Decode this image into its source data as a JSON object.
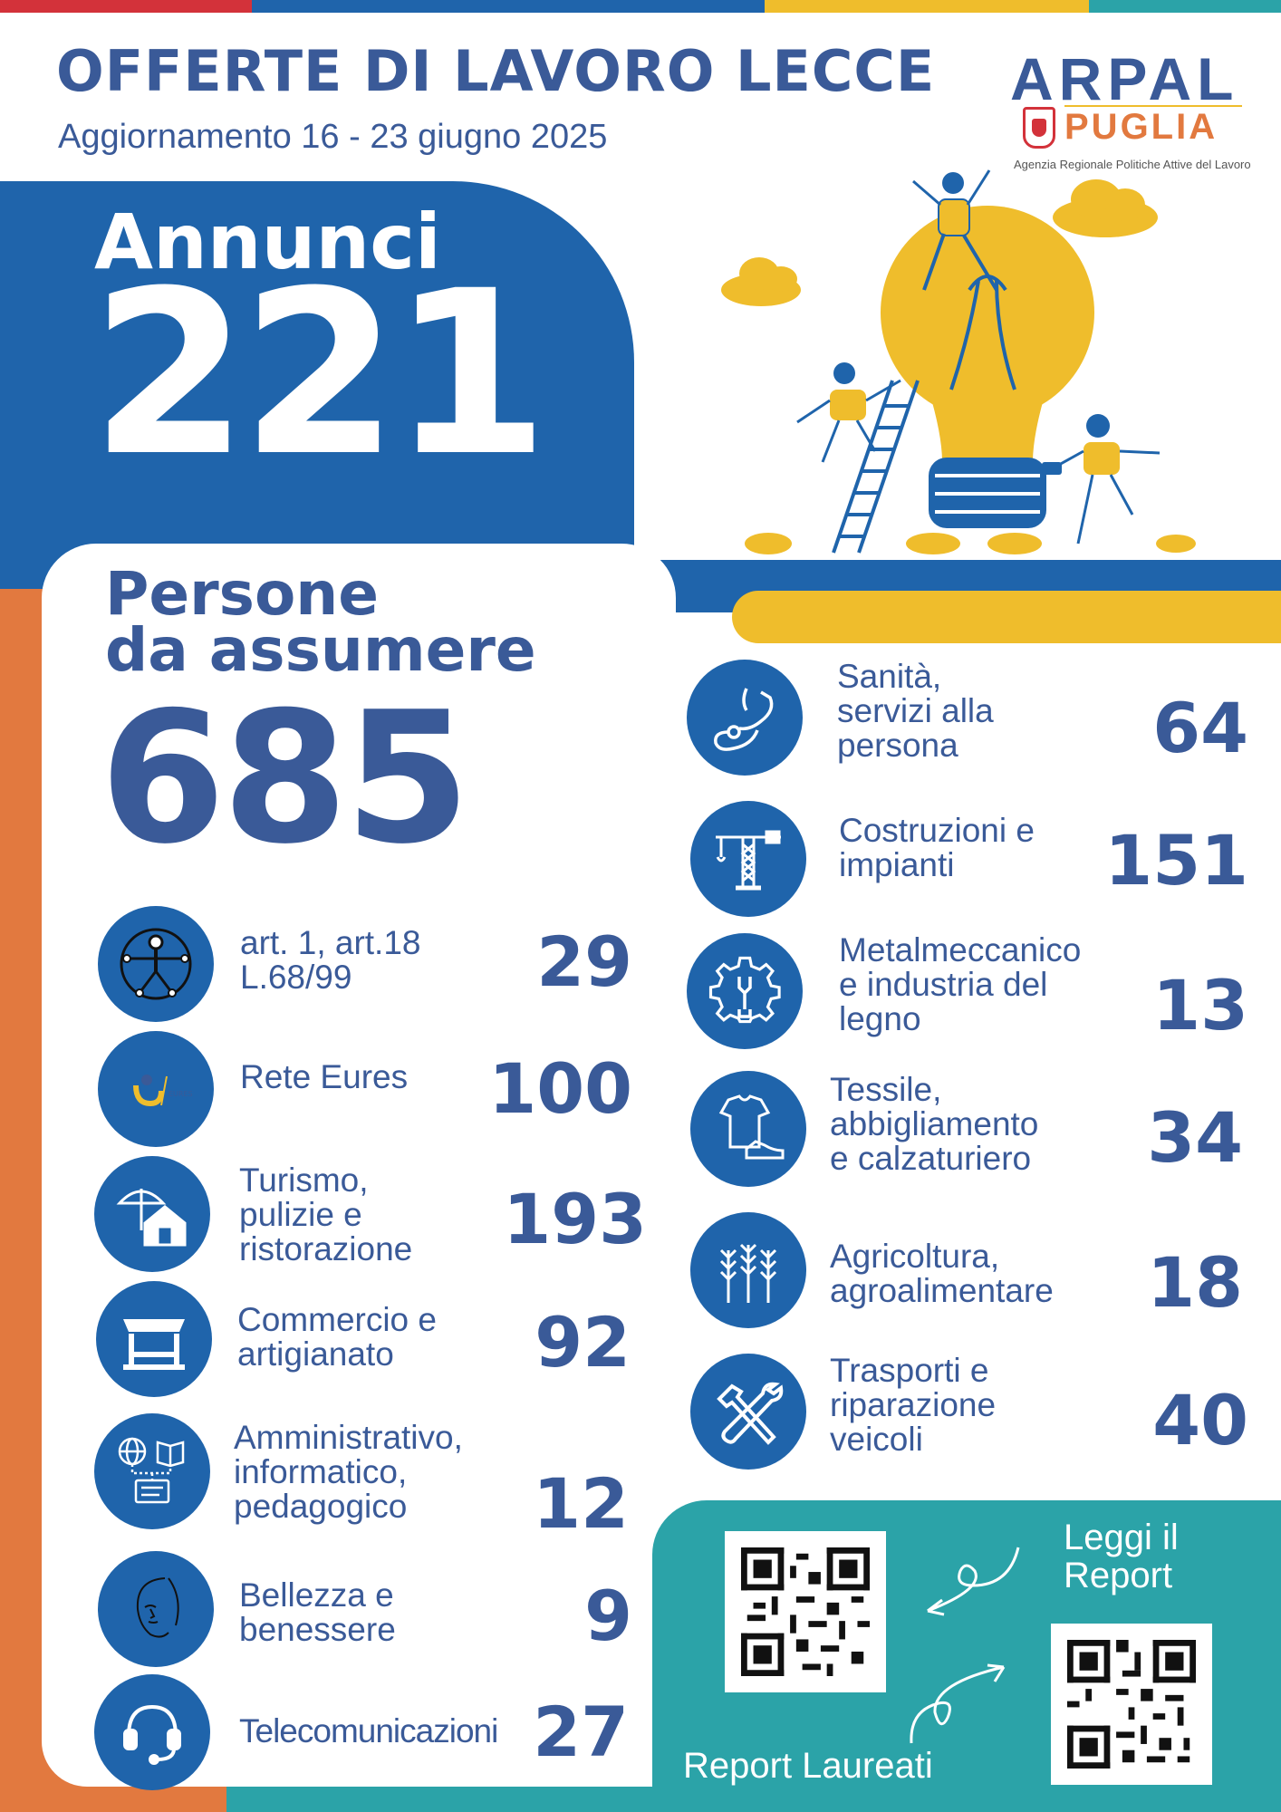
{
  "header": {
    "title": "OFFERTE DI LAVORO LECCE",
    "subtitle": "Aggiornamento 16 - 23 giugno 2025"
  },
  "logo": {
    "name": "ARPAL",
    "region": "PUGLIA",
    "agency": "Agenzia Regionale Politiche Attive del Lavoro"
  },
  "annunci": {
    "label": "Annunci",
    "value": "221"
  },
  "persone": {
    "label_line1": "Persone",
    "label_line2": "da assumere",
    "value": "685"
  },
  "left_categories": [
    {
      "label_lines": [
        "art. 1, art.18",
        "L.68/99"
      ],
      "value": "29",
      "icon": "accessibility-icon"
    },
    {
      "label_lines": [
        "Rete Eures"
      ],
      "value": "100",
      "icon": "eures-logo-icon"
    },
    {
      "label_lines": [
        "Turismo,",
        "pulizie e",
        "ristorazione"
      ],
      "value": "193",
      "icon": "umbrella-house-icon"
    },
    {
      "label_lines": [
        "Commercio e",
        "artigianato"
      ],
      "value": "92",
      "icon": "market-stall-icon"
    },
    {
      "label_lines": [
        "Amministrativo,",
        "informatico,",
        "pedagogico"
      ],
      "value": "12",
      "icon": "globe-book-icon"
    },
    {
      "label_lines": [
        "Bellezza e",
        "benessere"
      ],
      "value": "9",
      "icon": "face-icon"
    },
    {
      "label_lines": [
        "Telecomunicazioni"
      ],
      "value": "27",
      "icon": "headset-icon"
    }
  ],
  "right_categories": [
    {
      "label_lines": [
        "Sanità,",
        "servizi alla",
        "persona"
      ],
      "value": "64",
      "icon": "stethoscope-icon"
    },
    {
      "label_lines": [
        "Costruzioni e",
        "impianti"
      ],
      "value": "151",
      "icon": "crane-icon"
    },
    {
      "label_lines": [
        "Metalmeccanico",
        "e industria del",
        "legno"
      ],
      "value": "13",
      "icon": "gear-wrench-icon"
    },
    {
      "label_lines": [
        "Tessile,",
        "abbigliamento",
        "e calzaturiero"
      ],
      "value": "34",
      "icon": "shirt-shoe-icon"
    },
    {
      "label_lines": [
        "Agricoltura,",
        "agroalimentare"
      ],
      "value": "18",
      "icon": "wheat-icon"
    },
    {
      "label_lines": [
        "Trasporti e",
        "riparazione",
        "veicoli"
      ],
      "value": "40",
      "icon": "tools-icon"
    }
  ],
  "report": {
    "read_line1": "Leggi il",
    "read_line2": "Report",
    "graduates": "Report Laureati"
  },
  "colors": {
    "blue": "#1f64ab",
    "navy_text": "#3a5a98",
    "yellow": "#efbd2c",
    "orange": "#e2793f",
    "teal": "#2ba3a8",
    "red": "#d3323a"
  }
}
